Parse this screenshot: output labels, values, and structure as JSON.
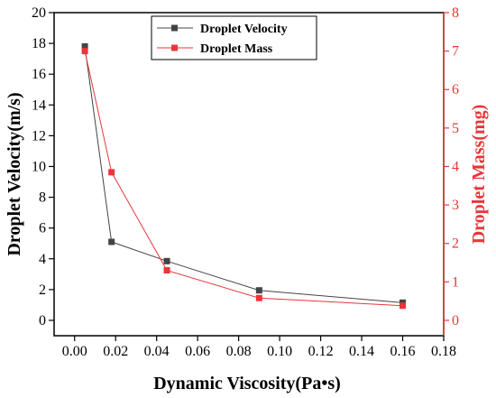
{
  "chart_data": {
    "type": "line",
    "x": [
      0.005,
      0.018,
      0.045,
      0.09,
      0.16
    ],
    "series": [
      {
        "name": "Droplet Velocity",
        "axis": "left",
        "color": "#444444",
        "marker": "square",
        "values": [
          17.8,
          5.1,
          3.85,
          1.95,
          1.15
        ]
      },
      {
        "name": "Droplet Mass",
        "axis": "right",
        "color": "#e8363a",
        "marker": "square",
        "values": [
          7.0,
          3.85,
          1.3,
          0.58,
          0.38
        ]
      }
    ],
    "xlabel": "Dynamic Viscosity(Pa•s)",
    "ylabel": "Droplet Velocity(m/s)",
    "y2label": "Droplet Mass(mg)",
    "xlim": [
      -0.01,
      0.18
    ],
    "ylim": [
      -1,
      20
    ],
    "y2lim": [
      -0.4,
      8
    ],
    "xticks": [
      "0.00",
      "0.02",
      "0.04",
      "0.06",
      "0.08",
      "0.10",
      "0.12",
      "0.14",
      "0.16",
      "0.18"
    ],
    "yticks": [
      "0",
      "2",
      "4",
      "6",
      "8",
      "10",
      "12",
      "14",
      "16",
      "18",
      "20"
    ],
    "y2ticks": [
      "0",
      "1",
      "2",
      "3",
      "4",
      "5",
      "6",
      "7",
      "8"
    ],
    "grid": false,
    "legend_position": "top-center",
    "right_axis_color": "#e8363a"
  }
}
